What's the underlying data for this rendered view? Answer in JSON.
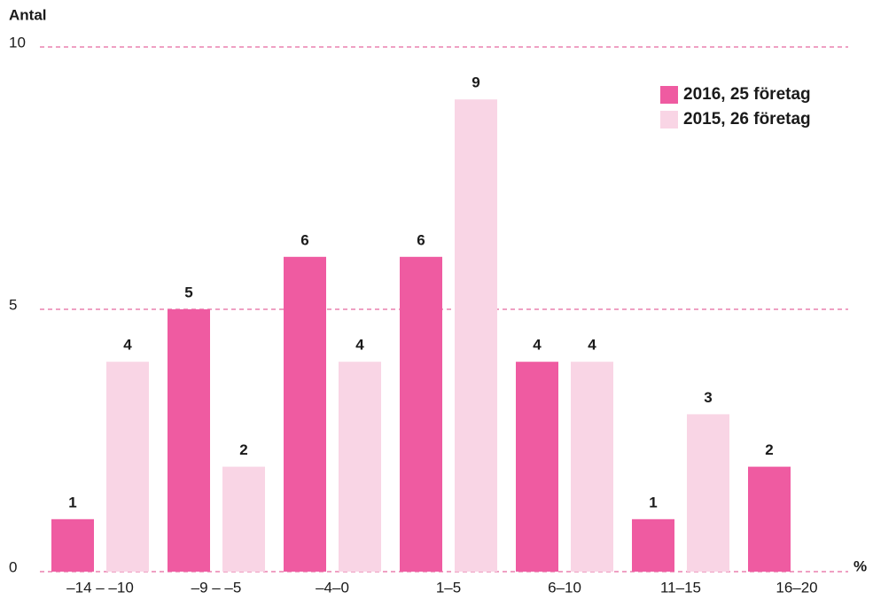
{
  "chart_data": {
    "type": "bar",
    "y_label": "Antal",
    "x_label": "%",
    "categories": [
      "–14 – –10",
      "–9 – –5",
      "–4–0",
      "1–5",
      "6–10",
      "11–15",
      "16–20"
    ],
    "series": [
      {
        "name": "2016, 25 företag",
        "color": "#ef5ba1",
        "values": [
          1,
          5,
          6,
          6,
          4,
          1,
          2
        ]
      },
      {
        "name": "2015, 26 företag",
        "color": "#f9d5e5",
        "values": [
          4,
          2,
          4,
          9,
          4,
          3,
          null
        ]
      }
    ],
    "ylim": [
      0,
      10
    ],
    "yticks": [
      0,
      5,
      10
    ],
    "grid": true,
    "legend": "top-right"
  }
}
